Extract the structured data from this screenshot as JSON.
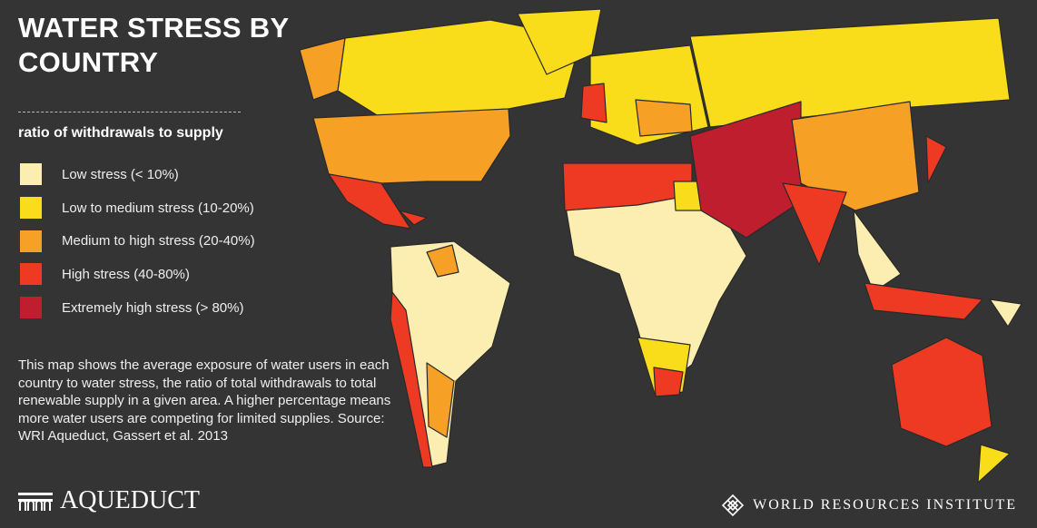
{
  "header": {
    "title": "WATER STRESS BY COUNTRY"
  },
  "legend": {
    "title": "ratio of withdrawals to supply",
    "items": [
      {
        "label": "Low stress (< 10%)",
        "color": "#fbeeb0"
      },
      {
        "label": "Low to medium stress (10-20%)",
        "color": "#f9dc1a"
      },
      {
        "label": "Medium to high stress (20-40%)",
        "color": "#f6a025"
      },
      {
        "label": "High stress (40-80%)",
        "color": "#ee3a23"
      },
      {
        "label": "Extremely high stress (> 80%)",
        "color": "#be1e2d"
      }
    ]
  },
  "description": "This map shows the average exposure of water users in each country to water stress, the ratio of total withdrawals to total renewable supply in a given area. A higher percentage means more water users are competing for limited supplies. Source: WRI Aqueduct, Gassert et al. 2013",
  "footer": {
    "left_logo": "AQUEDUCT",
    "right_logo": "WORLD RESOURCES INSTITUTE"
  }
}
